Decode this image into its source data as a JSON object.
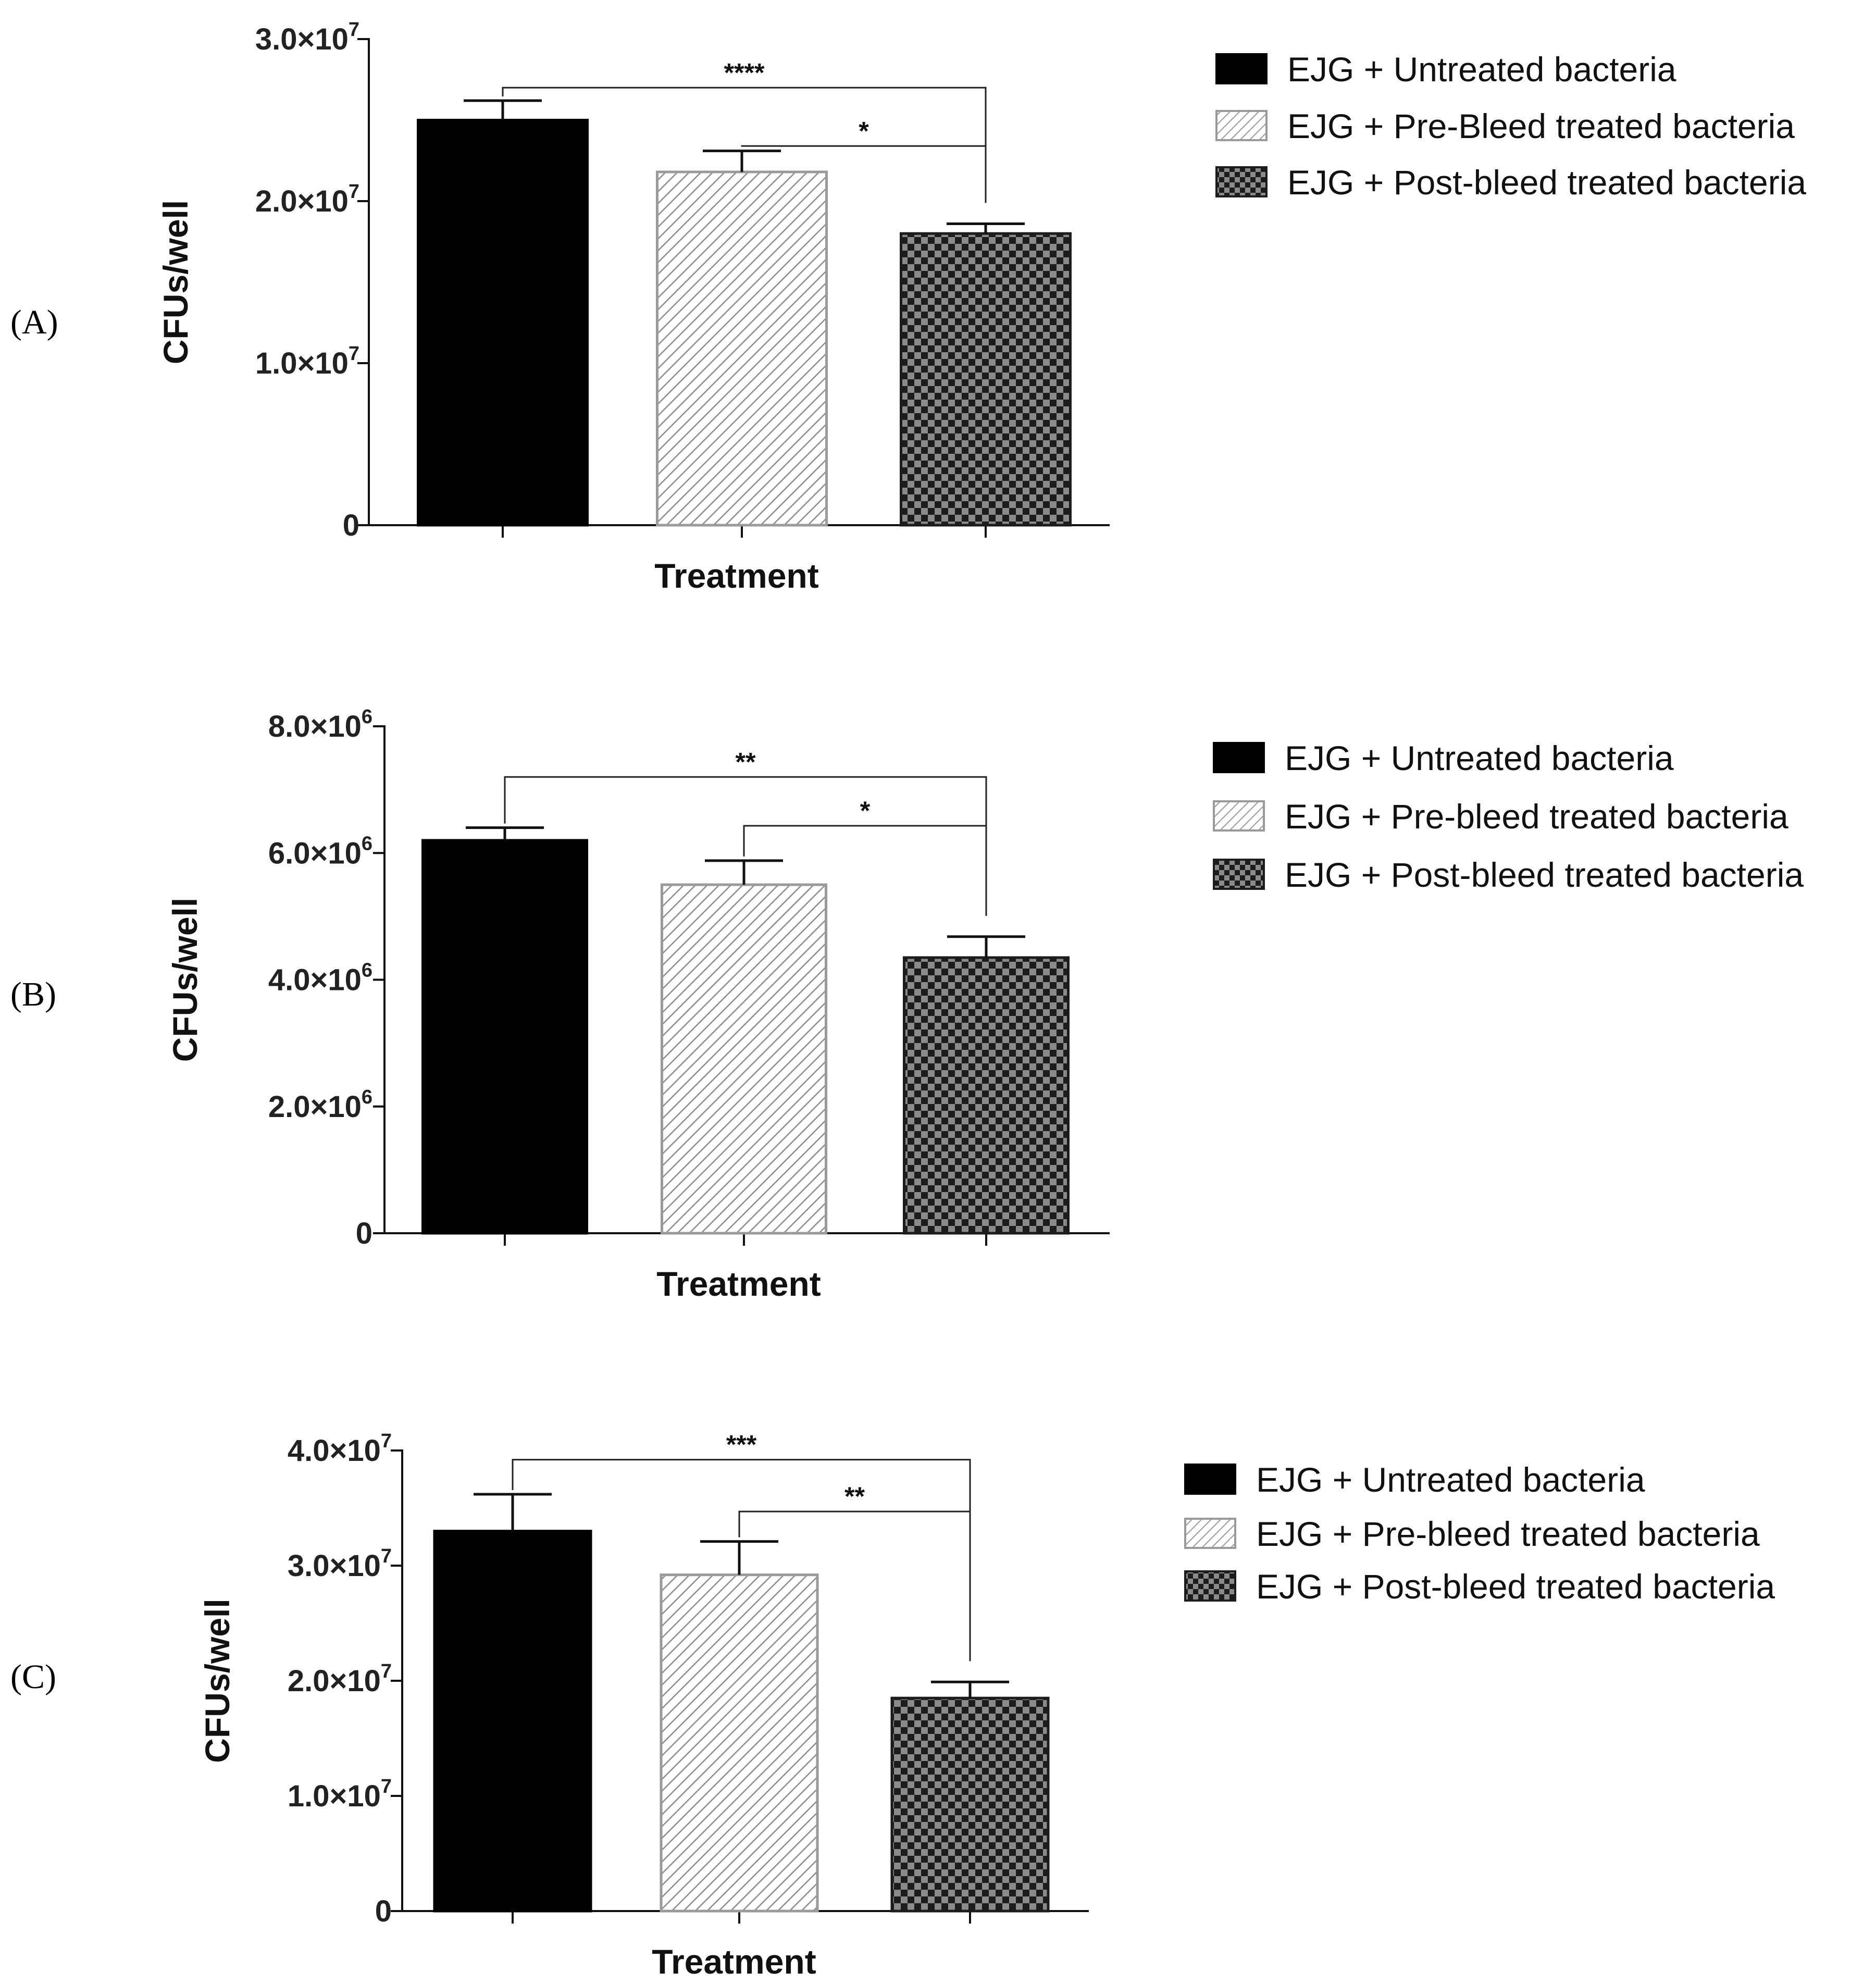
{
  "panels": [
    {
      "label": "(A)",
      "chart_data": {
        "type": "bar",
        "title": "",
        "xlabel": "Treatment",
        "ylabel": "CFUs/well",
        "ylim": [
          0,
          30000000
        ],
        "ticks": [
          {
            "value": 0,
            "mant": "0",
            "exp": ""
          },
          {
            "value": 10000000,
            "mant": "1.0×10",
            "exp": "7"
          },
          {
            "value": 20000000,
            "mant": "2.0×10",
            "exp": "7"
          },
          {
            "value": 30000000,
            "mant": "3.0×10",
            "exp": "7"
          }
        ],
        "categories": [
          "EJG + Untreated bacteria",
          "EJG + Pre-Bleed treated bacteria",
          "EJG + Post-bleed treated bacteria"
        ],
        "values": [
          25000000,
          21800000,
          18000000
        ],
        "errors": [
          1200000,
          1300000,
          600000
        ],
        "significance": [
          {
            "from": 0,
            "to": 2,
            "label": "****",
            "level": 27000000
          },
          {
            "from": 1,
            "to": 2,
            "label": "*",
            "level": 23400000
          }
        ],
        "legend": [
          "EJG + Untreated bacteria",
          "EJG + Pre-Bleed treated bacteria",
          "EJG + Post-bleed treated bacteria"
        ]
      }
    },
    {
      "label": "(B)",
      "chart_data": {
        "type": "bar",
        "title": "",
        "xlabel": "Treatment",
        "ylabel": "CFUs/well",
        "ylim": [
          0,
          8000000
        ],
        "ticks": [
          {
            "value": 0,
            "mant": "0",
            "exp": ""
          },
          {
            "value": 2000000,
            "mant": "2.0×10",
            "exp": "6"
          },
          {
            "value": 4000000,
            "mant": "4.0×10",
            "exp": "6"
          },
          {
            "value": 6000000,
            "mant": "6.0×10",
            "exp": "6"
          },
          {
            "value": 8000000,
            "mant": "8.0×10",
            "exp": "6"
          }
        ],
        "categories": [
          "EJG + Untreated bacteria",
          "EJG + Pre-bleed treated bacteria",
          "EJG + Post-bleed treated bacteria"
        ],
        "values": [
          6200000,
          5500000,
          4350000
        ],
        "errors": [
          200000,
          380000,
          330000
        ],
        "significance": [
          {
            "from": 0,
            "to": 2,
            "label": "**",
            "level": 7200000
          },
          {
            "from": 1,
            "to": 2,
            "label": "*",
            "level": 6430000
          }
        ],
        "legend": [
          "EJG + Untreated bacteria",
          "EJG + Pre-bleed treated bacteria",
          "EJG + Post-bleed treated bacteria"
        ]
      }
    },
    {
      "label": "(C)",
      "chart_data": {
        "type": "bar",
        "title": "",
        "xlabel": "Treatment",
        "ylabel": "CFUs/well",
        "ylim": [
          0,
          40000000
        ],
        "ticks": [
          {
            "value": 0,
            "mant": "0",
            "exp": ""
          },
          {
            "value": 10000000,
            "mant": "1.0×10",
            "exp": "7"
          },
          {
            "value": 20000000,
            "mant": "2.0×10",
            "exp": "7"
          },
          {
            "value": 30000000,
            "mant": "3.0×10",
            "exp": "7"
          },
          {
            "value": 40000000,
            "mant": "4.0×10",
            "exp": "7"
          }
        ],
        "categories": [
          "EJG + Untreated bacteria",
          "EJG + Pre-bleed treated bacteria",
          "EJG + Post-bleed treated bacteria"
        ],
        "values": [
          33000000,
          29200000,
          18500000
        ],
        "errors": [
          3200000,
          2900000,
          1400000
        ],
        "significance": [
          {
            "from": 0,
            "to": 2,
            "label": "***",
            "level": 39200000
          },
          {
            "from": 1,
            "to": 2,
            "label": "**",
            "level": 34700000
          }
        ],
        "legend": [
          "EJG + Untreated bacteria",
          "EJG + Pre-bleed treated bacteria",
          "EJG + Post-bleed treated bacteria"
        ]
      }
    }
  ],
  "colors": {
    "untreated_fill": "#000000",
    "prebleed_stroke": "#9a9a9a",
    "prebleed_hatch": "#8c8c8c",
    "postbleed_dark": "#1c1c1c",
    "postbleed_light": "#8a8a8a",
    "axis": "#111111"
  }
}
